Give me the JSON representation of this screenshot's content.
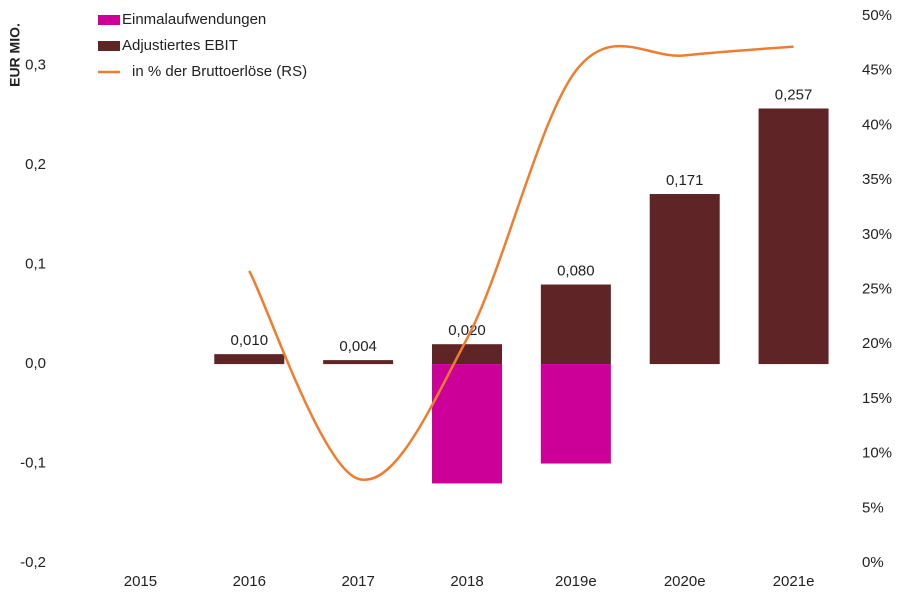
{
  "chart_data": {
    "type": "bar",
    "y_label": "EUR MIO.",
    "categories": [
      "2015",
      "2016",
      "2017",
      "2018",
      "2019e",
      "2020e",
      "2021e"
    ],
    "series": [
      {
        "name": "Einmalaufwendungen",
        "color": "#cc0099",
        "type": "bar",
        "values": [
          null,
          null,
          null,
          -0.12,
          -0.1,
          null,
          null
        ]
      },
      {
        "name": "Adjustiertes EBIT",
        "color": "#5e2426",
        "type": "bar",
        "values": [
          null,
          0.01,
          0.004,
          0.02,
          0.08,
          0.171,
          0.257
        ],
        "value_labels": [
          null,
          "0,010",
          "0,004",
          "0,020",
          "0,080",
          "0,171",
          "0,257"
        ]
      },
      {
        "name": "in % der Bruttoerlöse (RS)",
        "color": "#ee7d2e",
        "type": "line",
        "axis": "y2",
        "values": [
          null,
          26.7,
          7.7,
          20.5,
          45,
          46.4,
          47.2
        ]
      }
    ],
    "ylim": [
      -0.2,
      0.35
    ],
    "yticks": [
      {
        "value": -0.2,
        "label": "-0,2"
      },
      {
        "value": -0.1,
        "label": "-0,1"
      },
      {
        "value": 0,
        "label": "0,0"
      },
      {
        "value": 0.1,
        "label": "0,1"
      },
      {
        "value": 0.2,
        "label": "0,2"
      },
      {
        "value": 0.3,
        "label": "0,3"
      }
    ],
    "y2lim": [
      0,
      50
    ],
    "y2ticks": [
      {
        "value": 0,
        "label": "0%"
      },
      {
        "value": 5,
        "label": "5%"
      },
      {
        "value": 10,
        "label": "10%"
      },
      {
        "value": 15,
        "label": "15%"
      },
      {
        "value": 20,
        "label": "20%"
      },
      {
        "value": 25,
        "label": "25%"
      },
      {
        "value": 30,
        "label": "30%"
      },
      {
        "value": 35,
        "label": "35%"
      },
      {
        "value": 40,
        "label": "40%"
      },
      {
        "value": 45,
        "label": "45%"
      },
      {
        "value": 50,
        "label": "50%"
      }
    ],
    "legend": "top-left",
    "grid": false
  }
}
